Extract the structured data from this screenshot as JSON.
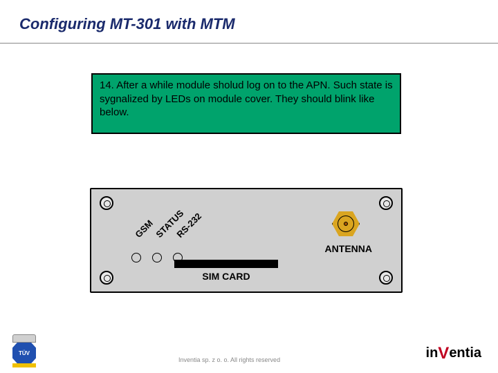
{
  "title": "Configuring MT-301 with MTM",
  "instruction": {
    "step": "14.",
    "text": "After a while module sholud log on to the APN. Such state is sygnalized by LEDs on module cover. They should blink like below.",
    "bg_color": "#00a36c"
  },
  "device": {
    "body_color": "#d0d0d0",
    "leds": [
      {
        "label": "GSM",
        "color": "#d0d0d0"
      },
      {
        "label": "STATUS",
        "color": "#d0d0d0"
      },
      {
        "label": "RS-232",
        "color": "#d0d0d0"
      }
    ],
    "antenna_label": "ANTENNA",
    "connector_color": "#daa520",
    "sim_label": "SIM CARD"
  },
  "badge": {
    "text": "TÜV"
  },
  "footer": "Inventia sp. z o. o. All rights reserved",
  "logo": {
    "pre": "in",
    "accent": "V",
    "post": "entia"
  }
}
